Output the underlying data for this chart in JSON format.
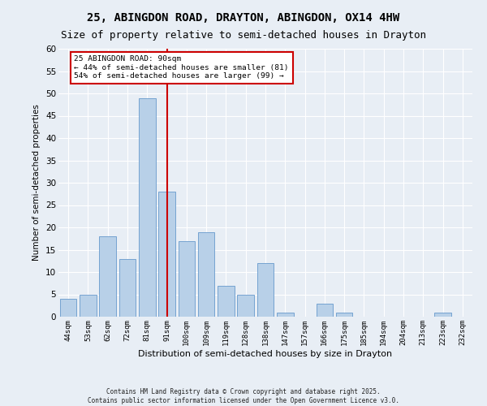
{
  "title": "25, ABINGDON ROAD, DRAYTON, ABINGDON, OX14 4HW",
  "subtitle": "Size of property relative to semi-detached houses in Drayton",
  "xlabel": "Distribution of semi-detached houses by size in Drayton",
  "ylabel": "Number of semi-detached properties",
  "bar_color": "#b8d0e8",
  "bar_edge_color": "#6699cc",
  "vline_color": "#cc0000",
  "vline_x": 5,
  "categories": [
    "44sqm",
    "53sqm",
    "62sqm",
    "72sqm",
    "81sqm",
    "91sqm",
    "100sqm",
    "109sqm",
    "119sqm",
    "128sqm",
    "138sqm",
    "147sqm",
    "157sqm",
    "166sqm",
    "175sqm",
    "185sqm",
    "194sqm",
    "204sqm",
    "213sqm",
    "223sqm",
    "232sqm"
  ],
  "values": [
    4,
    5,
    18,
    13,
    49,
    28,
    17,
    19,
    7,
    5,
    12,
    1,
    0,
    3,
    1,
    0,
    0,
    0,
    0,
    1,
    0
  ],
  "ylim": [
    0,
    60
  ],
  "yticks": [
    0,
    5,
    10,
    15,
    20,
    25,
    30,
    35,
    40,
    45,
    50,
    55,
    60
  ],
  "annotation_title": "25 ABINGDON ROAD: 90sqm",
  "annotation_line1": "← 44% of semi-detached houses are smaller (81)",
  "annotation_line2": "54% of semi-detached houses are larger (99) →",
  "footer": "Contains HM Land Registry data © Crown copyright and database right 2025.\nContains public sector information licensed under the Open Government Licence v3.0.",
  "bg_color": "#e8eef5",
  "grid_color": "#ffffff",
  "title_fontsize": 10,
  "subtitle_fontsize": 9,
  "annotation_box_color": "#ffffff",
  "annotation_box_edge": "#cc0000"
}
